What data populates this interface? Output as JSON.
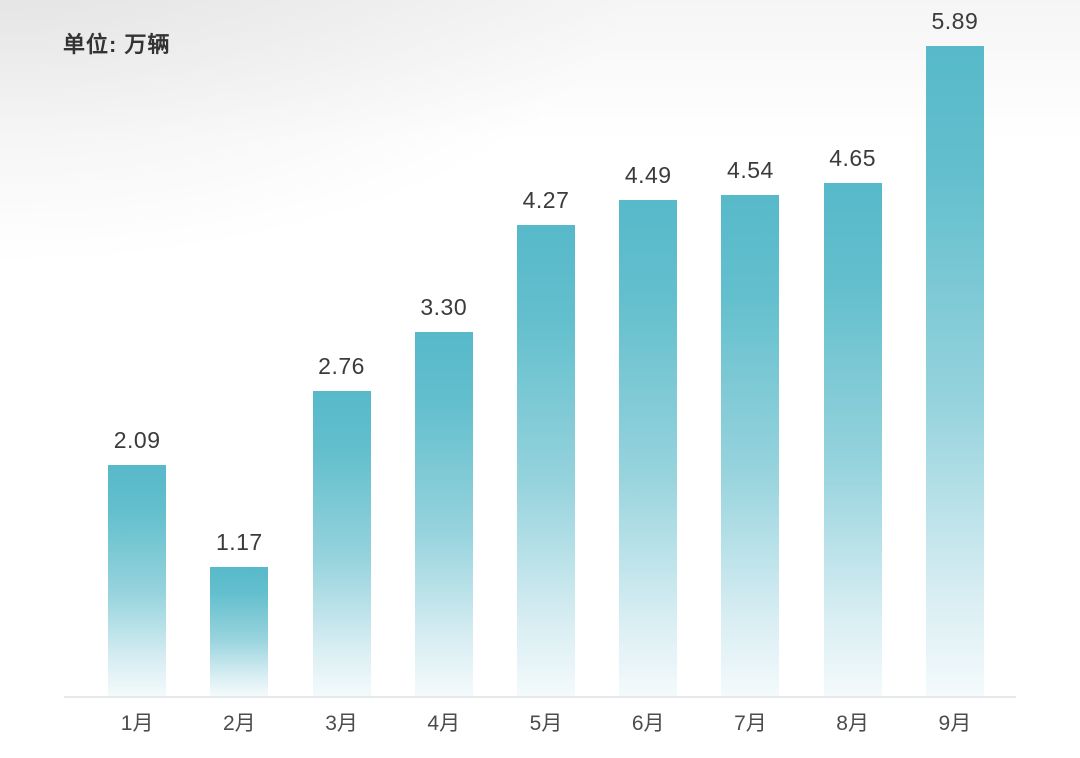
{
  "chart_data": {
    "type": "bar",
    "title": "",
    "unit_label": "单位: 万辆",
    "ylabel": "万辆",
    "xlabel": "",
    "categories": [
      "1月",
      "2月",
      "3月",
      "4月",
      "5月",
      "6月",
      "7月",
      "8月",
      "9月"
    ],
    "values": [
      2.09,
      1.17,
      2.76,
      3.3,
      4.27,
      4.49,
      4.54,
      4.65,
      5.89
    ],
    "value_labels": [
      "2.09",
      "1.17",
      "2.76",
      "3.30",
      "4.27",
      "4.49",
      "4.54",
      "4.65",
      "5.89"
    ],
    "ylim": [
      0,
      5.89
    ],
    "grid": false,
    "legend": false,
    "colors": {
      "bar_gradient_top": "#57b9c9",
      "bar_gradient_upper": "#63bfcd",
      "bar_gradient_mid": "#96d3dd",
      "bar_gradient_lower": "#d9eef3",
      "bar_gradient_bottom": "#f4fafb",
      "axis_line": "#e6e9ea",
      "value_label_text": "#3b3b3b",
      "tick_label_text": "#4c4c4c",
      "unit_label_text": "#333333"
    }
  }
}
